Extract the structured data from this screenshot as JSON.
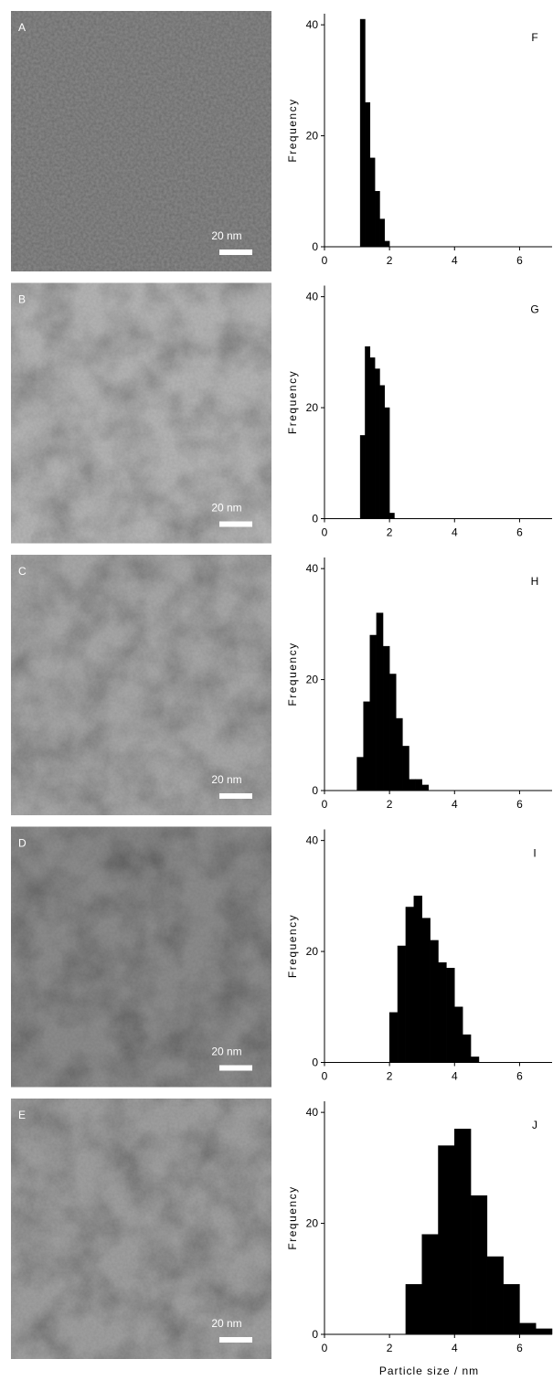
{
  "images": [
    {
      "label": "A",
      "scale_bar": "20 nm"
    },
    {
      "label": "B",
      "scale_bar": "20 nm"
    },
    {
      "label": "C",
      "scale_bar": "20 nm"
    },
    {
      "label": "D",
      "scale_bar": "20 nm"
    },
    {
      "label": "E",
      "scale_bar": "20 nm"
    }
  ],
  "chart_data": [
    {
      "type": "histogram",
      "panel": "F",
      "ylabel": "Frequency",
      "color": "#000000",
      "bins": [
        1.1,
        1.25,
        1.4,
        1.55,
        1.7,
        1.85,
        2.0
      ],
      "counts": [
        41,
        26,
        16,
        10,
        5,
        1
      ],
      "xlim": [
        0,
        7
      ],
      "xticks": [
        0,
        2,
        4,
        6
      ],
      "ylim": [
        0,
        42
      ],
      "yticks": [
        0,
        20,
        40
      ]
    },
    {
      "type": "histogram",
      "panel": "G",
      "ylabel": "Frequency",
      "color": "#000000",
      "bins": [
        1.1,
        1.25,
        1.4,
        1.55,
        1.7,
        1.85,
        2.0,
        2.15
      ],
      "counts": [
        15,
        31,
        29,
        27,
        24,
        20,
        1
      ],
      "xlim": [
        0,
        7
      ],
      "xticks": [
        0,
        2,
        4,
        6
      ],
      "ylim": [
        0,
        42
      ],
      "yticks": [
        0,
        20,
        40
      ]
    },
    {
      "type": "histogram",
      "panel": "H",
      "ylabel": "Frequency",
      "color": "#000000",
      "bins": [
        1.0,
        1.2,
        1.4,
        1.6,
        1.8,
        2.0,
        2.2,
        2.4,
        2.6,
        2.8,
        3.0,
        3.2
      ],
      "counts": [
        6,
        16,
        28,
        32,
        26,
        21,
        13,
        8,
        2,
        2,
        1
      ],
      "xlim": [
        0,
        7
      ],
      "xticks": [
        0,
        2,
        4,
        6
      ],
      "ylim": [
        0,
        42
      ],
      "yticks": [
        0,
        20,
        40
      ]
    },
    {
      "type": "histogram",
      "panel": "I",
      "ylabel": "Frequency",
      "color": "#000000",
      "bins": [
        2.0,
        2.25,
        2.5,
        2.75,
        3.0,
        3.25,
        3.5,
        3.75,
        4.0,
        4.25,
        4.5,
        4.75
      ],
      "counts": [
        9,
        21,
        28,
        30,
        26,
        22,
        18,
        17,
        10,
        5,
        1
      ],
      "xlim": [
        0,
        7
      ],
      "xticks": [
        0,
        2,
        4,
        6
      ],
      "ylim": [
        0,
        42
      ],
      "yticks": [
        0,
        20,
        40
      ]
    },
    {
      "type": "histogram",
      "panel": "J",
      "ylabel": "Frequency",
      "xlabel": "Particle size / nm",
      "color": "#000000",
      "bins": [
        2.5,
        3.0,
        3.5,
        4.0,
        4.5,
        5.0,
        5.5,
        6.0,
        6.5,
        7.0
      ],
      "counts": [
        9,
        18,
        34,
        37,
        25,
        14,
        9,
        2,
        1
      ],
      "xlim": [
        0,
        7
      ],
      "xticks": [
        0,
        2,
        4,
        6
      ],
      "ylim": [
        0,
        42
      ],
      "yticks": [
        0,
        20,
        40
      ]
    }
  ]
}
